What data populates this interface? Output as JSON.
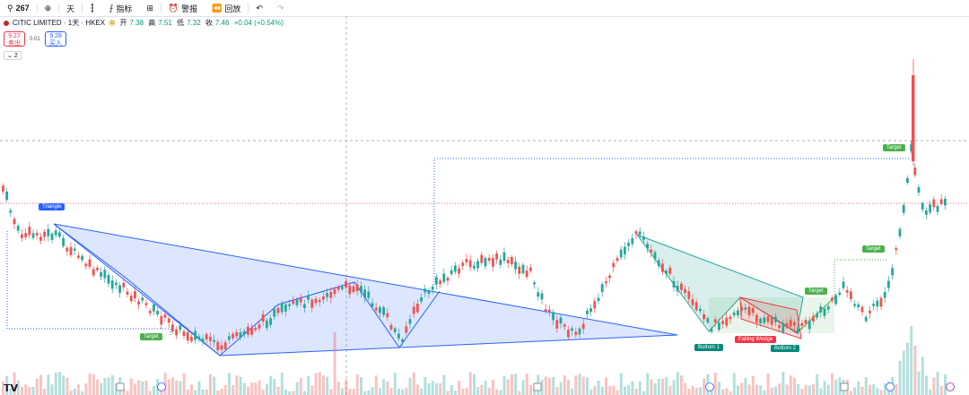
{
  "toolbar": {
    "symbol": "267",
    "interval": "天",
    "indicators_label": "指标",
    "alert_label": "警报",
    "replay_label": "回放"
  },
  "legend": {
    "title": "CITIC LIMITED · 1天 · HKEX",
    "badge": "D",
    "open_label": "开",
    "open": "7.38",
    "high_label": "高",
    "high": "7.51",
    "low_label": "低",
    "low": "7.32",
    "close_label": "收",
    "close": "7.46",
    "change": "+0.04 (+0.54%)"
  },
  "trade": {
    "sell_price": "9.27",
    "sell_label": "卖出",
    "spread": "0.01",
    "buy_price": "9.28",
    "buy_label": "买入",
    "collapse_count": "2"
  },
  "annotations": {
    "triangle": "Triangle",
    "target_left": "Target",
    "bottom1": "Bottom 1",
    "falling_wedge": "Falling Wedge",
    "bottom2": "Bottom 2",
    "target_mid": "Target",
    "target_right": "Target",
    "target_top": "Target"
  },
  "colors": {
    "up": "#26a69a",
    "down": "#ef5350",
    "pattern_blue": "#2962ff",
    "green_label": "#4caf50",
    "teal_label": "#00897b",
    "red_label": "#f23645"
  }
}
